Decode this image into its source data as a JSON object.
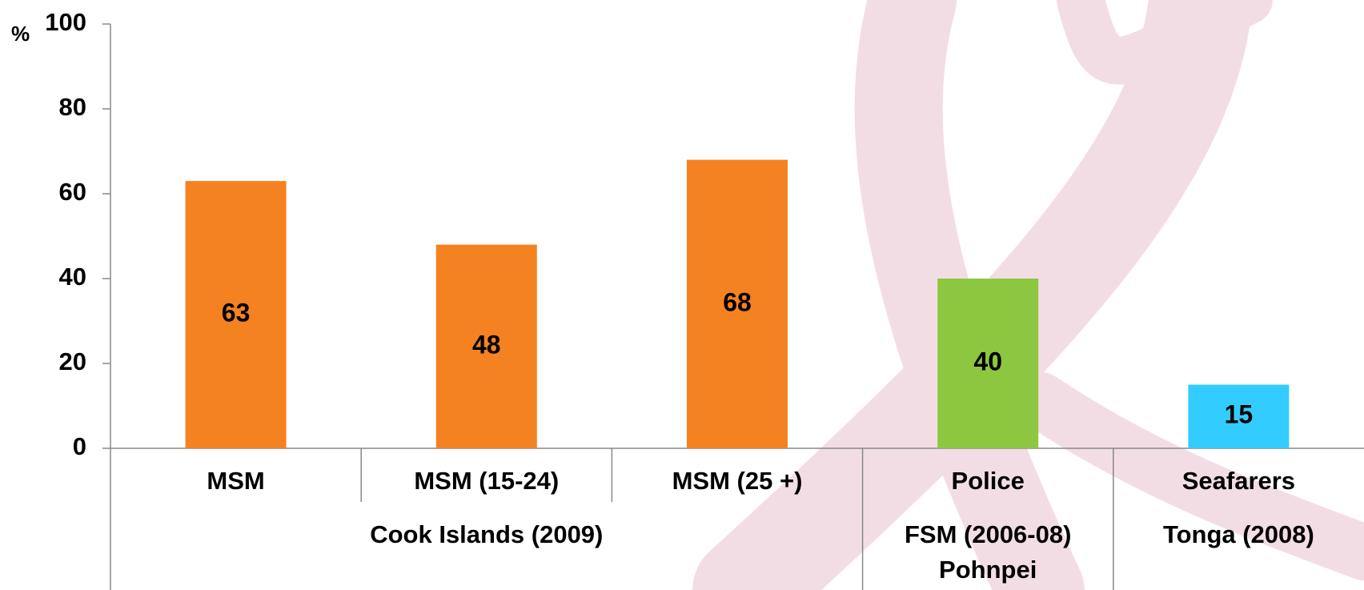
{
  "chart_data": {
    "type": "bar",
    "y_label": "%",
    "categories": [
      "MSM",
      "MSM (15-24)",
      "MSM (25 +)",
      "Police",
      "Seafarers"
    ],
    "values": [
      63,
      48,
      68,
      40,
      15
    ],
    "colors": [
      "#f58220",
      "#f58220",
      "#f58220",
      "#8dc63f",
      "#33ccff"
    ],
    "groups": [
      {
        "lines": [
          "Cook Islands (2009)"
        ],
        "size": 3
      },
      {
        "lines": [
          "FSM (2006-08)",
          "Pohnpei"
        ],
        "size": 1
      },
      {
        "lines": [
          "Tonga (2008)"
        ],
        "size": 1
      }
    ],
    "ylim": [
      0,
      100
    ],
    "yticks": [
      0,
      20,
      40,
      60,
      80,
      100
    ],
    "data_labels": true
  }
}
